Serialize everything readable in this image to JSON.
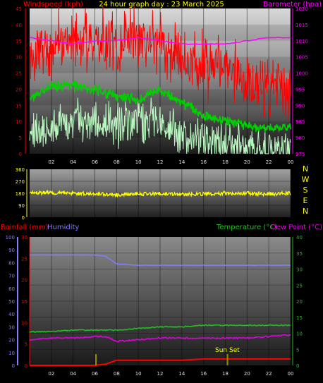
{
  "header": {
    "title": "24 hour graph day : 23 March 2025",
    "left_label": "Windspeed (kph)",
    "right_label": "Barometer (hpa)"
  },
  "colors": {
    "wind_speed": "#ff0000",
    "wind_avg": "#00d000",
    "wind_low": "#b8f8c0",
    "barometer": "#ff00ff",
    "direction": "#ffff00",
    "humidity": "#7f7fff",
    "temperature": "#20c020",
    "dew_point": "#e000e0",
    "rainfall": "#ff0000",
    "sun_marker": "#9b8b00",
    "title": "#ffff00"
  },
  "x_ticks": [
    "02",
    "04",
    "06",
    "08",
    "10",
    "12",
    "14",
    "16",
    "18",
    "20",
    "22",
    "00"
  ],
  "wind_panel": {
    "left_ticks": [
      "45",
      "40",
      "35",
      "30",
      "25",
      "20",
      "15",
      "10",
      "5",
      "0"
    ],
    "right_ticks": [
      "1020",
      "1015",
      "1010",
      "1005",
      "1000",
      "995",
      "990",
      "985",
      "980",
      "975"
    ]
  },
  "direction_panel": {
    "ticks": [
      "360",
      "270",
      "180",
      "90",
      "0"
    ],
    "compass": [
      "N",
      "W",
      "S",
      "E",
      "N"
    ]
  },
  "bottom_panel": {
    "rain_label": "Rainfall (mm)",
    "humidity_label": "Humidity",
    "temp_label": "Temperature (°C)",
    "dew_label": "Dew Point (°C)",
    "humidity_ticks": [
      "100",
      "90",
      "80",
      "70",
      "60",
      "50",
      "40",
      "30",
      "20",
      "10",
      "0"
    ],
    "rain_ticks": [
      "30",
      "25",
      "20",
      "15",
      "10",
      "5",
      "0"
    ],
    "temp_ticks": [
      "40",
      "35",
      "30",
      "25",
      "20",
      "15",
      "10",
      "5",
      "0"
    ],
    "sunset_label": "Sun Set"
  },
  "chart_data": [
    {
      "type": "line",
      "title": "24 hour graph day : 23 March 2025",
      "x": [
        0,
        2,
        4,
        6,
        8,
        10,
        12,
        14,
        16,
        18,
        20,
        22,
        24
      ],
      "xticks": [
        "02",
        "04",
        "06",
        "08",
        "10",
        "12",
        "14",
        "16",
        "18",
        "20",
        "22",
        "00"
      ],
      "ylabel": "Windspeed (kph)",
      "ylim": [
        0,
        45
      ],
      "y2label": "Barometer (hpa)",
      "y2lim": [
        975,
        1020
      ],
      "series": [
        {
          "name": "wind gust",
          "axis": "left",
          "values": [
            30,
            33,
            34,
            35,
            34,
            36,
            35,
            29,
            28,
            26,
            22,
            20,
            20
          ]
        },
        {
          "name": "wind average",
          "axis": "left",
          "values": [
            17,
            21,
            21,
            20,
            18,
            17,
            20,
            16,
            12,
            10,
            9,
            8,
            8
          ]
        },
        {
          "name": "wind low",
          "axis": "left",
          "values": [
            7,
            9,
            10,
            10,
            9,
            10,
            10,
            6,
            4,
            3,
            2,
            1,
            2
          ]
        },
        {
          "name": "barometer",
          "axis": "right",
          "values": [
            1011,
            1010,
            1009,
            1010,
            1010,
            1011,
            1010,
            1009,
            1009,
            1009,
            1010,
            1011,
            1011
          ]
        }
      ]
    },
    {
      "type": "line",
      "x": [
        0,
        2,
        4,
        6,
        8,
        10,
        12,
        14,
        16,
        18,
        20,
        22,
        24
      ],
      "ylim": [
        0,
        360
      ],
      "series": [
        {
          "name": "wind direction",
          "values": [
            180,
            185,
            180,
            175,
            170,
            175,
            175,
            170,
            175,
            180,
            180,
            175,
            180
          ]
        }
      ]
    },
    {
      "type": "line",
      "x": [
        0,
        2,
        4,
        6,
        7,
        8,
        10,
        12,
        14,
        16,
        18,
        20,
        22,
        24
      ],
      "series": [
        {
          "name": "Humidity",
          "axis": "humidity",
          "ylim": [
            0,
            100
          ],
          "values": [
            86,
            86,
            86,
            86,
            85,
            79,
            78,
            78,
            78,
            78,
            78,
            78,
            78,
            78
          ]
        },
        {
          "name": "Temperature (°C)",
          "axis": "temperature",
          "ylim": [
            0,
            40
          ],
          "values": [
            10.5,
            10.5,
            11,
            11,
            11,
            11,
            11.5,
            12,
            12,
            12.5,
            12.5,
            12.5,
            12.5,
            12.5
          ]
        },
        {
          "name": "Dew Point (°C)",
          "axis": "temperature",
          "ylim": [
            0,
            40
          ],
          "values": [
            8,
            8.5,
            8.5,
            9,
            9,
            7.5,
            8,
            8.5,
            8.5,
            8.5,
            8.5,
            8.5,
            9,
            9.5
          ]
        },
        {
          "name": "Rainfall (mm)",
          "axis": "rainfall",
          "ylim": [
            0,
            30
          ],
          "values": [
            0,
            0,
            0,
            0,
            0.3,
            1.2,
            1.2,
            1.2,
            1.2,
            1.5,
            1.5,
            1.5,
            1.5,
            1.5
          ]
        }
      ],
      "annotations": [
        "Sun Set"
      ]
    }
  ]
}
